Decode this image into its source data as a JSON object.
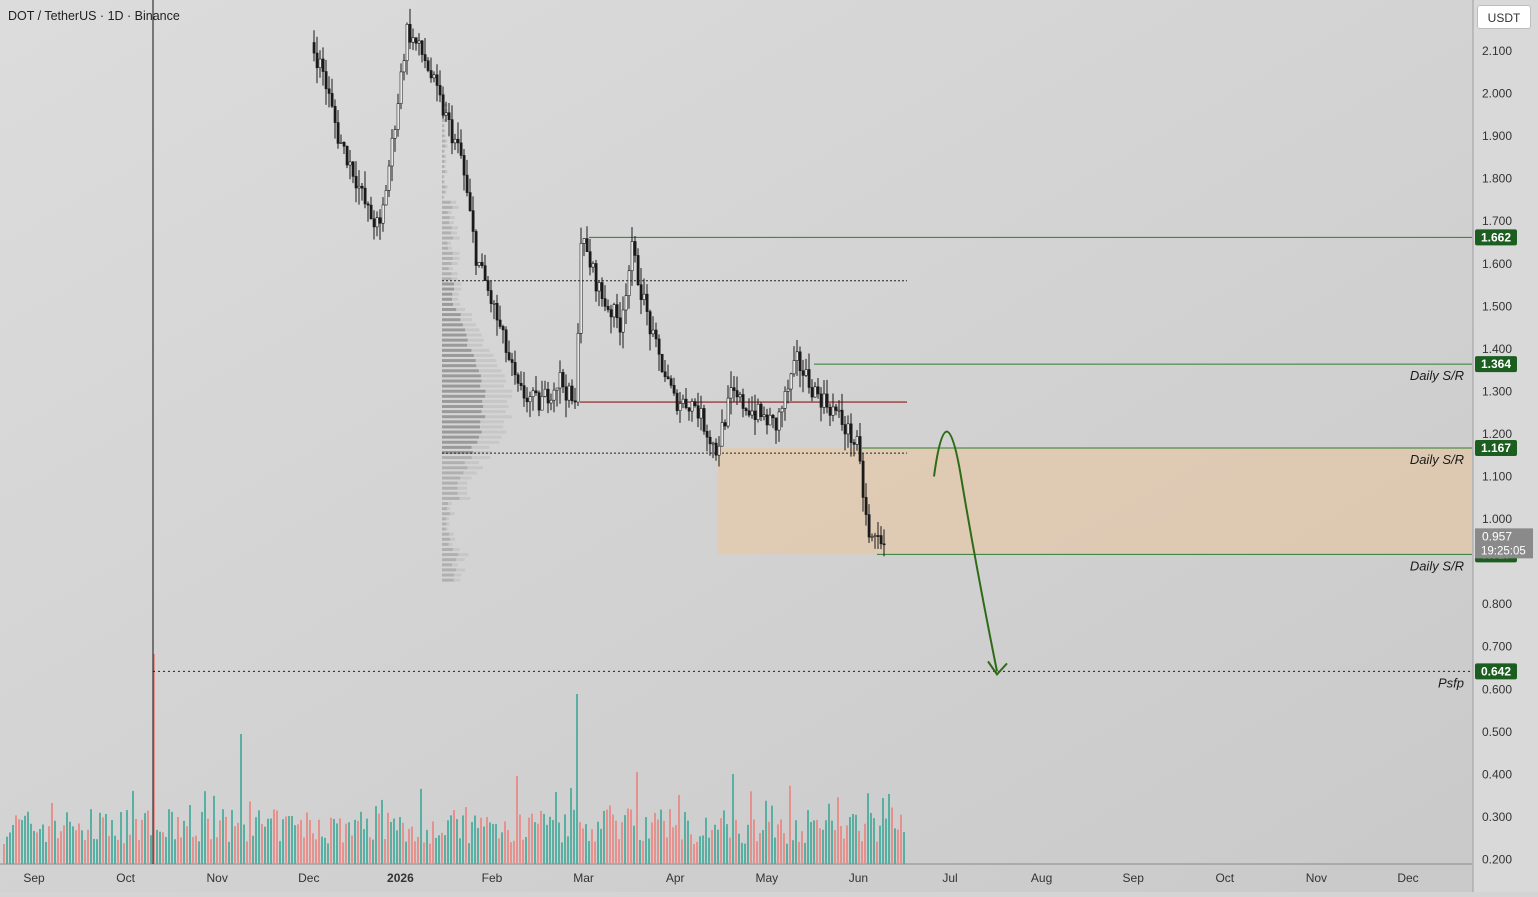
{
  "header": {
    "symbol_title": "DOT / TetherUS · 1D · Binance"
  },
  "toolbar": {
    "currency_label": "USDT"
  },
  "colors": {
    "background": "#d4d4d4",
    "axis_panel": "#d9d9d9",
    "up_candle": "#ffffff",
    "down_candle": "#1a1a1a",
    "volume_up": "#4cab9d",
    "volume_down": "#e78a86",
    "resistance_line": "#2e7d32",
    "poc_line": "#8b1a1a",
    "zone_fill": "#f2c48c",
    "arrow": "#2f6b17",
    "badge_green": "#1b5e20",
    "badge_gray": "#8a8a8a"
  },
  "chart_data": {
    "type": "candlestick",
    "title": "DOT / TetherUS · 1D · Binance",
    "currency": "USDT",
    "y_axis": {
      "ticks": [
        "2.100",
        "2.000",
        "1.900",
        "1.800",
        "1.700",
        "1.600",
        "1.500",
        "1.400",
        "1.300",
        "1.200",
        "1.100",
        "1.000",
        "0.800",
        "0.700",
        "0.600",
        "0.500",
        "0.400",
        "0.300",
        "0.200"
      ],
      "range": [
        0.2,
        2.18
      ]
    },
    "x_axis": {
      "ticks": [
        "Sep",
        "Oct",
        "Nov",
        "Dec",
        "2026",
        "Feb",
        "Mar",
        "Apr",
        "May",
        "Jun",
        "Jul",
        "Aug",
        "Sep",
        "Oct",
        "Nov",
        "Dec"
      ]
    },
    "price_path": [
      {
        "date": "2025-12-01",
        "price": 2.12
      },
      {
        "date": "2025-12-05",
        "price": 2.05
      },
      {
        "date": "2025-12-10",
        "price": 1.9
      },
      {
        "date": "2025-12-15",
        "price": 1.82
      },
      {
        "date": "2025-12-20",
        "price": 1.72
      },
      {
        "date": "2025-12-24",
        "price": 1.68
      },
      {
        "date": "2025-12-28",
        "price": 1.88
      },
      {
        "date": "2026-01-02",
        "price": 2.15
      },
      {
        "date": "2026-01-08",
        "price": 2.08
      },
      {
        "date": "2026-01-13",
        "price": 1.98
      },
      {
        "date": "2026-01-20",
        "price": 1.85
      },
      {
        "date": "2026-01-25",
        "price": 1.62
      },
      {
        "date": "2026-02-01",
        "price": 1.47
      },
      {
        "date": "2026-02-08",
        "price": 1.3
      },
      {
        "date": "2026-02-15",
        "price": 1.27
      },
      {
        "date": "2026-02-22",
        "price": 1.33
      },
      {
        "date": "2026-02-27",
        "price": 1.26
      },
      {
        "date": "2026-03-01",
        "price": 1.66
      },
      {
        "date": "2026-03-08",
        "price": 1.52
      },
      {
        "date": "2026-03-14",
        "price": 1.46
      },
      {
        "date": "2026-03-18",
        "price": 1.63
      },
      {
        "date": "2026-03-25",
        "price": 1.42
      },
      {
        "date": "2026-04-01",
        "price": 1.28
      },
      {
        "date": "2026-04-08",
        "price": 1.27
      },
      {
        "date": "2026-04-15",
        "price": 1.16
      },
      {
        "date": "2026-04-20",
        "price": 1.29
      },
      {
        "date": "2026-04-28",
        "price": 1.25
      },
      {
        "date": "2026-05-05",
        "price": 1.22
      },
      {
        "date": "2026-05-12",
        "price": 1.37
      },
      {
        "date": "2026-05-18",
        "price": 1.3
      },
      {
        "date": "2026-05-25",
        "price": 1.25
      },
      {
        "date": "2026-06-01",
        "price": 1.17
      },
      {
        "date": "2026-06-05",
        "price": 0.95
      },
      {
        "date": "2026-06-10",
        "price": 0.957
      }
    ],
    "levels": [
      {
        "price": 1.662,
        "label": "1.662",
        "note": ""
      },
      {
        "price": 1.364,
        "label": "1.364",
        "note": "Daily S/R"
      },
      {
        "price": 1.167,
        "label": "1.167",
        "note": "Daily S/R"
      },
      {
        "price": 0.917,
        "label": "0.917",
        "note": "Daily S/R"
      },
      {
        "price": 0.642,
        "label": "0.642",
        "note": "Psfp"
      }
    ],
    "current_price": {
      "value": "0.957",
      "countdown": "19:25:05"
    },
    "zone": {
      "low": 0.917,
      "high": 1.167
    },
    "poc_price": 1.275,
    "value_area": {
      "high": 1.56,
      "low": 1.155
    },
    "forecast_path": [
      {
        "date": "2026-06-26",
        "price": 1.1
      },
      {
        "date": "2026-06-30",
        "price": 1.17
      },
      {
        "date": "2026-07-09",
        "price": 0.9
      },
      {
        "date": "2026-07-17",
        "price": 0.642
      }
    ]
  }
}
